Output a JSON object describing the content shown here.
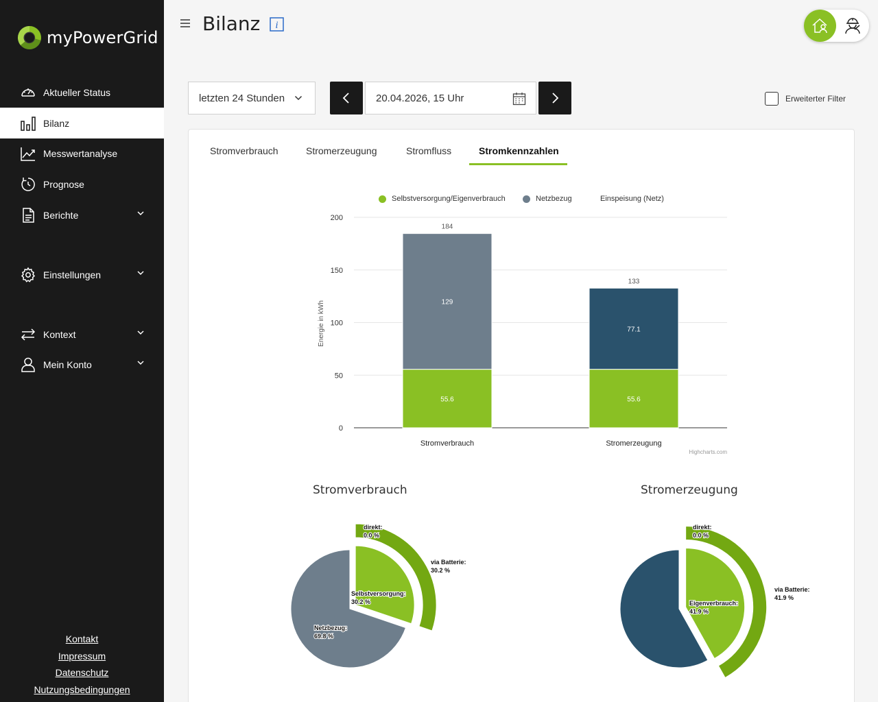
{
  "app": {
    "name": "myPowerGrid"
  },
  "sidebar": {
    "items": [
      {
        "label": "Aktueller Status",
        "icon": "gauge-icon"
      },
      {
        "label": "Bilanz",
        "icon": "bar-chart-icon",
        "active": true
      },
      {
        "label": "Messwertanalyse",
        "icon": "line-chart-icon"
      },
      {
        "label": "Prognose",
        "icon": "forecast-icon"
      },
      {
        "label": "Berichte",
        "icon": "document-icon",
        "expandable": true
      },
      {
        "label": "Einstellungen",
        "icon": "gear-icon",
        "expandable": true
      },
      {
        "label": "Kontext",
        "icon": "swap-arrows-icon",
        "expandable": true
      },
      {
        "label": "Mein Konto",
        "icon": "user-icon",
        "expandable": true
      }
    ],
    "footer": [
      "Kontakt",
      "Impressum",
      "Datenschutz",
      "Nutzungsbedingungen"
    ]
  },
  "header": {
    "title": "Bilanz"
  },
  "filter": {
    "range": "letzten 24 Stunden",
    "date": "20.04.2026, 15 Uhr",
    "extended_filter_label": "Erweiterter Filter",
    "extended_filter_checked": false
  },
  "tabs": [
    {
      "label": "Stromverbrauch"
    },
    {
      "label": "Stromerzeugung"
    },
    {
      "label": "Stromfluss"
    },
    {
      "label": "Stromkennzahlen",
      "active": true
    }
  ],
  "colors": {
    "brand_green": "#8ac024",
    "dark_green": "#73a812",
    "slate": "#6e7e8c",
    "navy": "#2a526c",
    "sidebar": "#1a1a1a"
  },
  "chart_data": [
    {
      "type": "bar",
      "stacked": true,
      "legend": [
        {
          "name": "Selbstversorgung/Eigenverbrauch",
          "color": "#8ac024"
        },
        {
          "name": "Netzbezug",
          "color": "#6e7e8c"
        },
        {
          "name": "Einspeisung (Netz)",
          "color": "#2a526c"
        }
      ],
      "categories": [
        "Stromverbrauch",
        "Stromerzeugung"
      ],
      "series": [
        {
          "name": "Selbstversorgung/Eigenverbrauch",
          "values": [
            55.6,
            55.6
          ],
          "labels": [
            "55.6",
            "55.6"
          ]
        },
        {
          "name": "Netzbezug",
          "values": [
            129,
            0
          ],
          "labels": [
            "129",
            ""
          ]
        },
        {
          "name": "Einspeisung (Netz)",
          "values": [
            0,
            77.1
          ],
          "labels": [
            "",
            "77.1"
          ]
        }
      ],
      "totals": [
        "184",
        "133"
      ],
      "ylabel": "Energie in kWh",
      "ylim": [
        0,
        200
      ],
      "yticks": [
        "0",
        "50",
        "100",
        "150",
        "200"
      ],
      "credit": "Highcharts.com",
      "grid": true
    },
    {
      "type": "pie",
      "title": "Stromverbrauch",
      "slices": [
        {
          "name": "Selbstversorgung",
          "label": "Selbstversorgung:",
          "pct": "30.2 %",
          "value": 30.2,
          "color": "#8ac024"
        },
        {
          "name": "Netzbezug",
          "label": "Netzbezug:",
          "pct": "69.8 %",
          "value": 69.8,
          "color": "#6e7e8c"
        }
      ],
      "outer_ring": [
        {
          "label": "direkt:",
          "pct": "0.0 %",
          "value": 0.0
        },
        {
          "label": "via Batterie:",
          "pct": "30.2 %",
          "value": 30.2
        }
      ]
    },
    {
      "type": "pie",
      "title": "Stromerzeugung",
      "slices": [
        {
          "name": "Eigenverbrauch",
          "label": "Eigenverbrauch:",
          "pct": "41.9 %",
          "value": 41.9,
          "color": "#8ac024"
        },
        {
          "name": "Einspeisung",
          "label": "",
          "pct": "",
          "value": 58.1,
          "color": "#2a526c"
        }
      ],
      "outer_ring": [
        {
          "label": "direkt:",
          "pct": "0.0 %",
          "value": 0.0
        },
        {
          "label": "via Batterie:",
          "pct": "41.9 %",
          "value": 41.9
        }
      ]
    }
  ]
}
